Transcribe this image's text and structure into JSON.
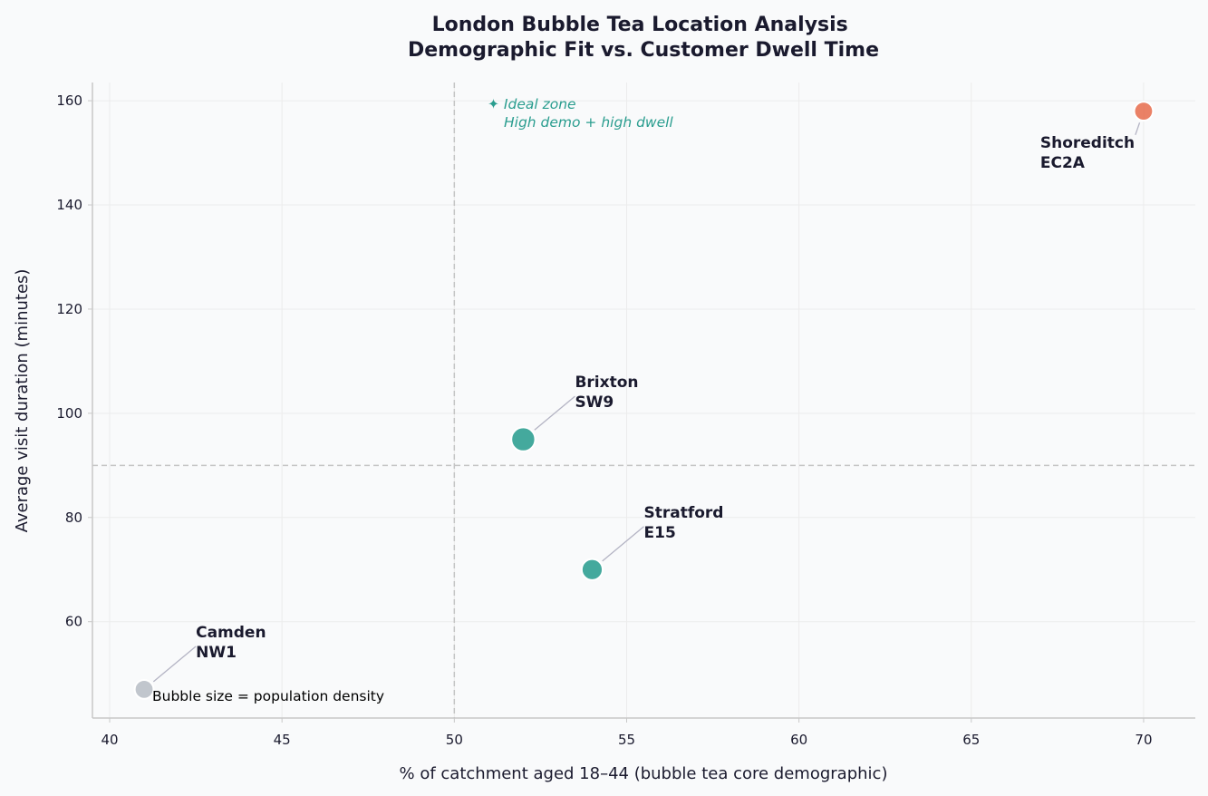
{
  "chart_data": {
    "type": "scatter",
    "title": [
      "London Bubble Tea Location Analysis",
      "Demographic Fit vs. Customer Dwell Time"
    ],
    "xlabel": "% of catchment aged 18–44 (bubble tea core demographic)",
    "ylabel": "Average visit duration (minutes)",
    "xlim": [
      39.5,
      71.5
    ],
    "ylim": [
      41.5,
      163.5
    ],
    "xticks": [
      40,
      45,
      50,
      55,
      60,
      65,
      70
    ],
    "yticks": [
      60,
      80,
      100,
      120,
      140,
      160
    ],
    "grid": true,
    "reference_lines": {
      "x": 50,
      "y": 90
    },
    "points": [
      {
        "label": [
          "Shoreditch",
          "EC2A"
        ],
        "x": 70,
        "y": 158,
        "density": 0.55,
        "color": "#e76f51",
        "label_at": [
          67,
          151
        ]
      },
      {
        "label": [
          "Brixton",
          "SW9"
        ],
        "x": 52,
        "y": 95,
        "density": 0.9,
        "color": "#2a9d8f",
        "label_at": [
          53.5,
          105
        ]
      },
      {
        "label": [
          "Stratford",
          "E15"
        ],
        "x": 54,
        "y": 70,
        "density": 0.7,
        "color": "#2a9d8f",
        "label_at": [
          55.5,
          80
        ]
      },
      {
        "label": [
          "Camden",
          "NW1"
        ],
        "x": 41,
        "y": 47,
        "density": 0.55,
        "color": "#b8bec6",
        "label_at": [
          42.5,
          57
        ]
      }
    ],
    "annotations": {
      "ideal_zone": [
        "✦ Ideal zone",
        "High demo + high dwell"
      ],
      "size_note": "Bubble size = population density"
    }
  }
}
